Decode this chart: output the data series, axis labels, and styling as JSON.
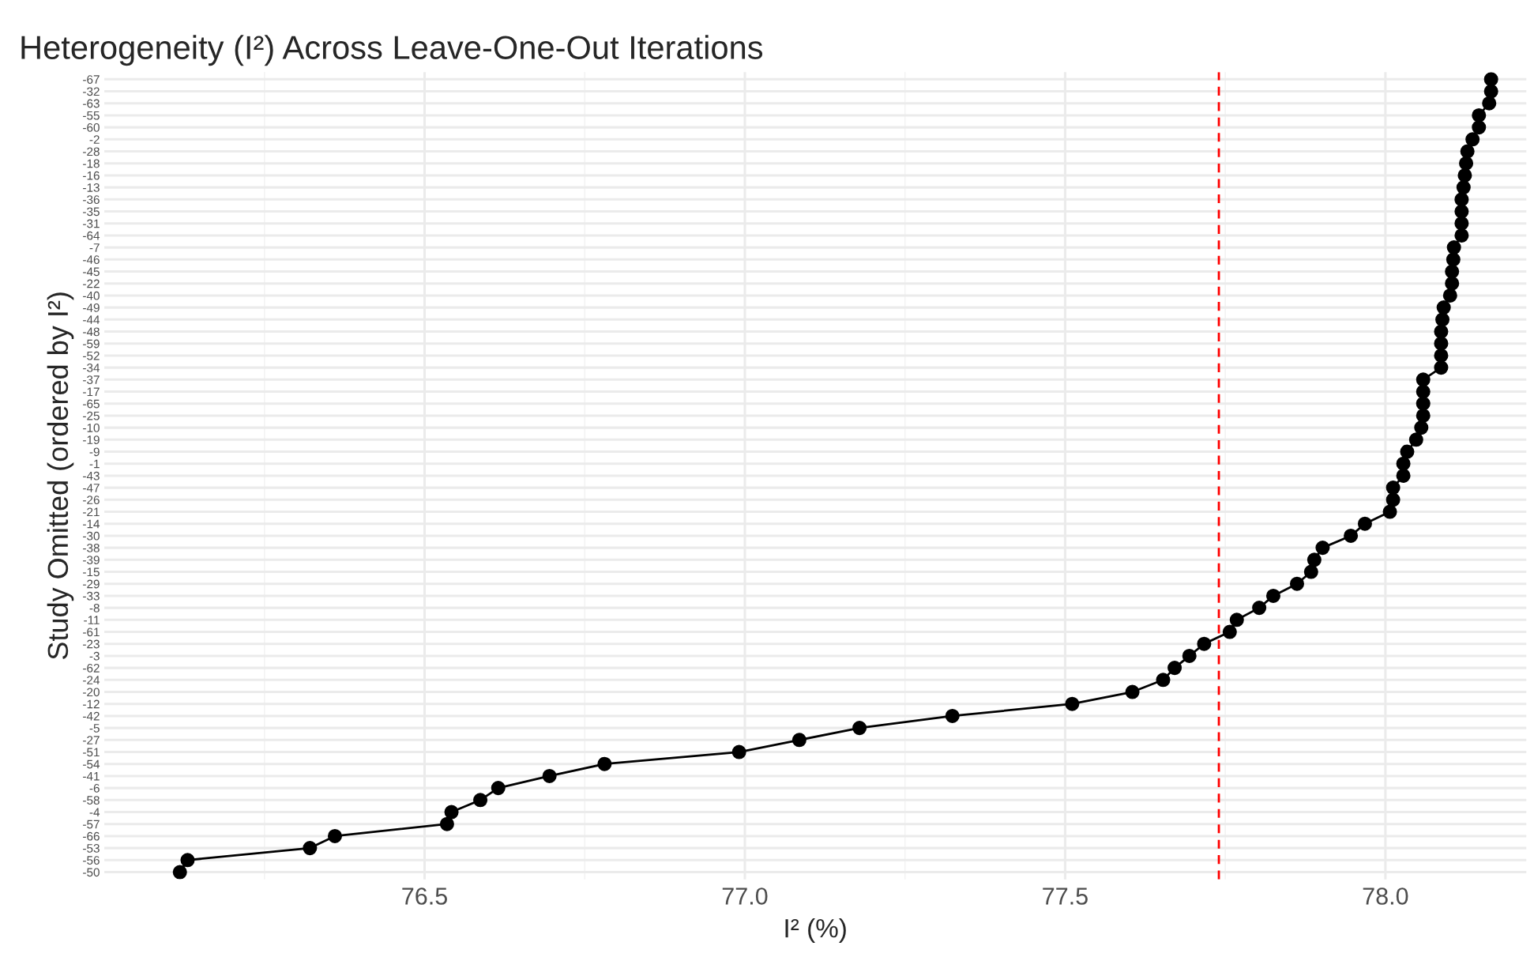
{
  "chart_data": {
    "type": "line",
    "orientation": "horizontal",
    "title": "Heterogeneity (I²) Across Leave-One-Out Iterations",
    "xlabel": "I² (%)",
    "ylabel": "Study Omitted (ordered by I²)",
    "categories": [
      "-67",
      "-32",
      "-63",
      "-55",
      "-60",
      "-2",
      "-28",
      "-18",
      "-16",
      "-13",
      "-36",
      "-35",
      "-31",
      "-64",
      "-7",
      "-46",
      "-45",
      "-22",
      "-40",
      "-49",
      "-44",
      "-48",
      "-59",
      "-52",
      "-34",
      "-37",
      "-17",
      "-65",
      "-25",
      "-10",
      "-19",
      "-9",
      "-1",
      "-43",
      "-47",
      "-26",
      "-21",
      "-14",
      "-30",
      "-38",
      "-39",
      "-15",
      "-29",
      "-33",
      "-8",
      "-11",
      "-61",
      "-23",
      "-3",
      "-62",
      "-24",
      "-20",
      "-12",
      "-42",
      "-5",
      "-27",
      "-51",
      "-54",
      "-41",
      "-6",
      "-58",
      "-4",
      "-57",
      "-66",
      "-53",
      "-56",
      "-50"
    ],
    "series": [
      {
        "color": "#000000",
        "values": [
          78.165,
          78.165,
          78.162,
          78.146,
          78.146,
          78.136,
          78.128,
          78.126,
          78.124,
          78.122,
          78.119,
          78.119,
          78.119,
          78.119,
          78.107,
          78.106,
          78.104,
          78.104,
          78.101,
          78.091,
          78.089,
          78.087,
          78.087,
          78.087,
          78.087,
          78.059,
          78.059,
          78.059,
          78.059,
          78.056,
          78.048,
          78.034,
          78.028,
          78.028,
          78.012,
          78.012,
          78.007,
          77.968,
          77.946,
          77.902,
          77.889,
          77.884,
          77.862,
          77.825,
          77.803,
          77.768,
          77.757,
          77.717,
          77.694,
          77.671,
          77.653,
          77.605,
          77.511,
          77.324,
          77.179,
          77.085,
          76.991,
          76.781,
          76.695,
          76.615,
          76.587,
          76.542,
          76.535,
          76.36,
          76.321,
          76.13,
          76.118
        ]
      }
    ],
    "xlim": [
      76.0,
      78.22
    ],
    "xticks": [
      76.5,
      {
        "value": 77,
        "label": "77.0"
      },
      77.5,
      {
        "value": 78,
        "label": "78.0"
      }
    ],
    "ref_lines": [
      {
        "axis": "x",
        "value": 77.74,
        "color": "#ff0000",
        "line_style": "dashed"
      }
    ],
    "marker": "circle",
    "line_style": "solid",
    "grid": true
  }
}
